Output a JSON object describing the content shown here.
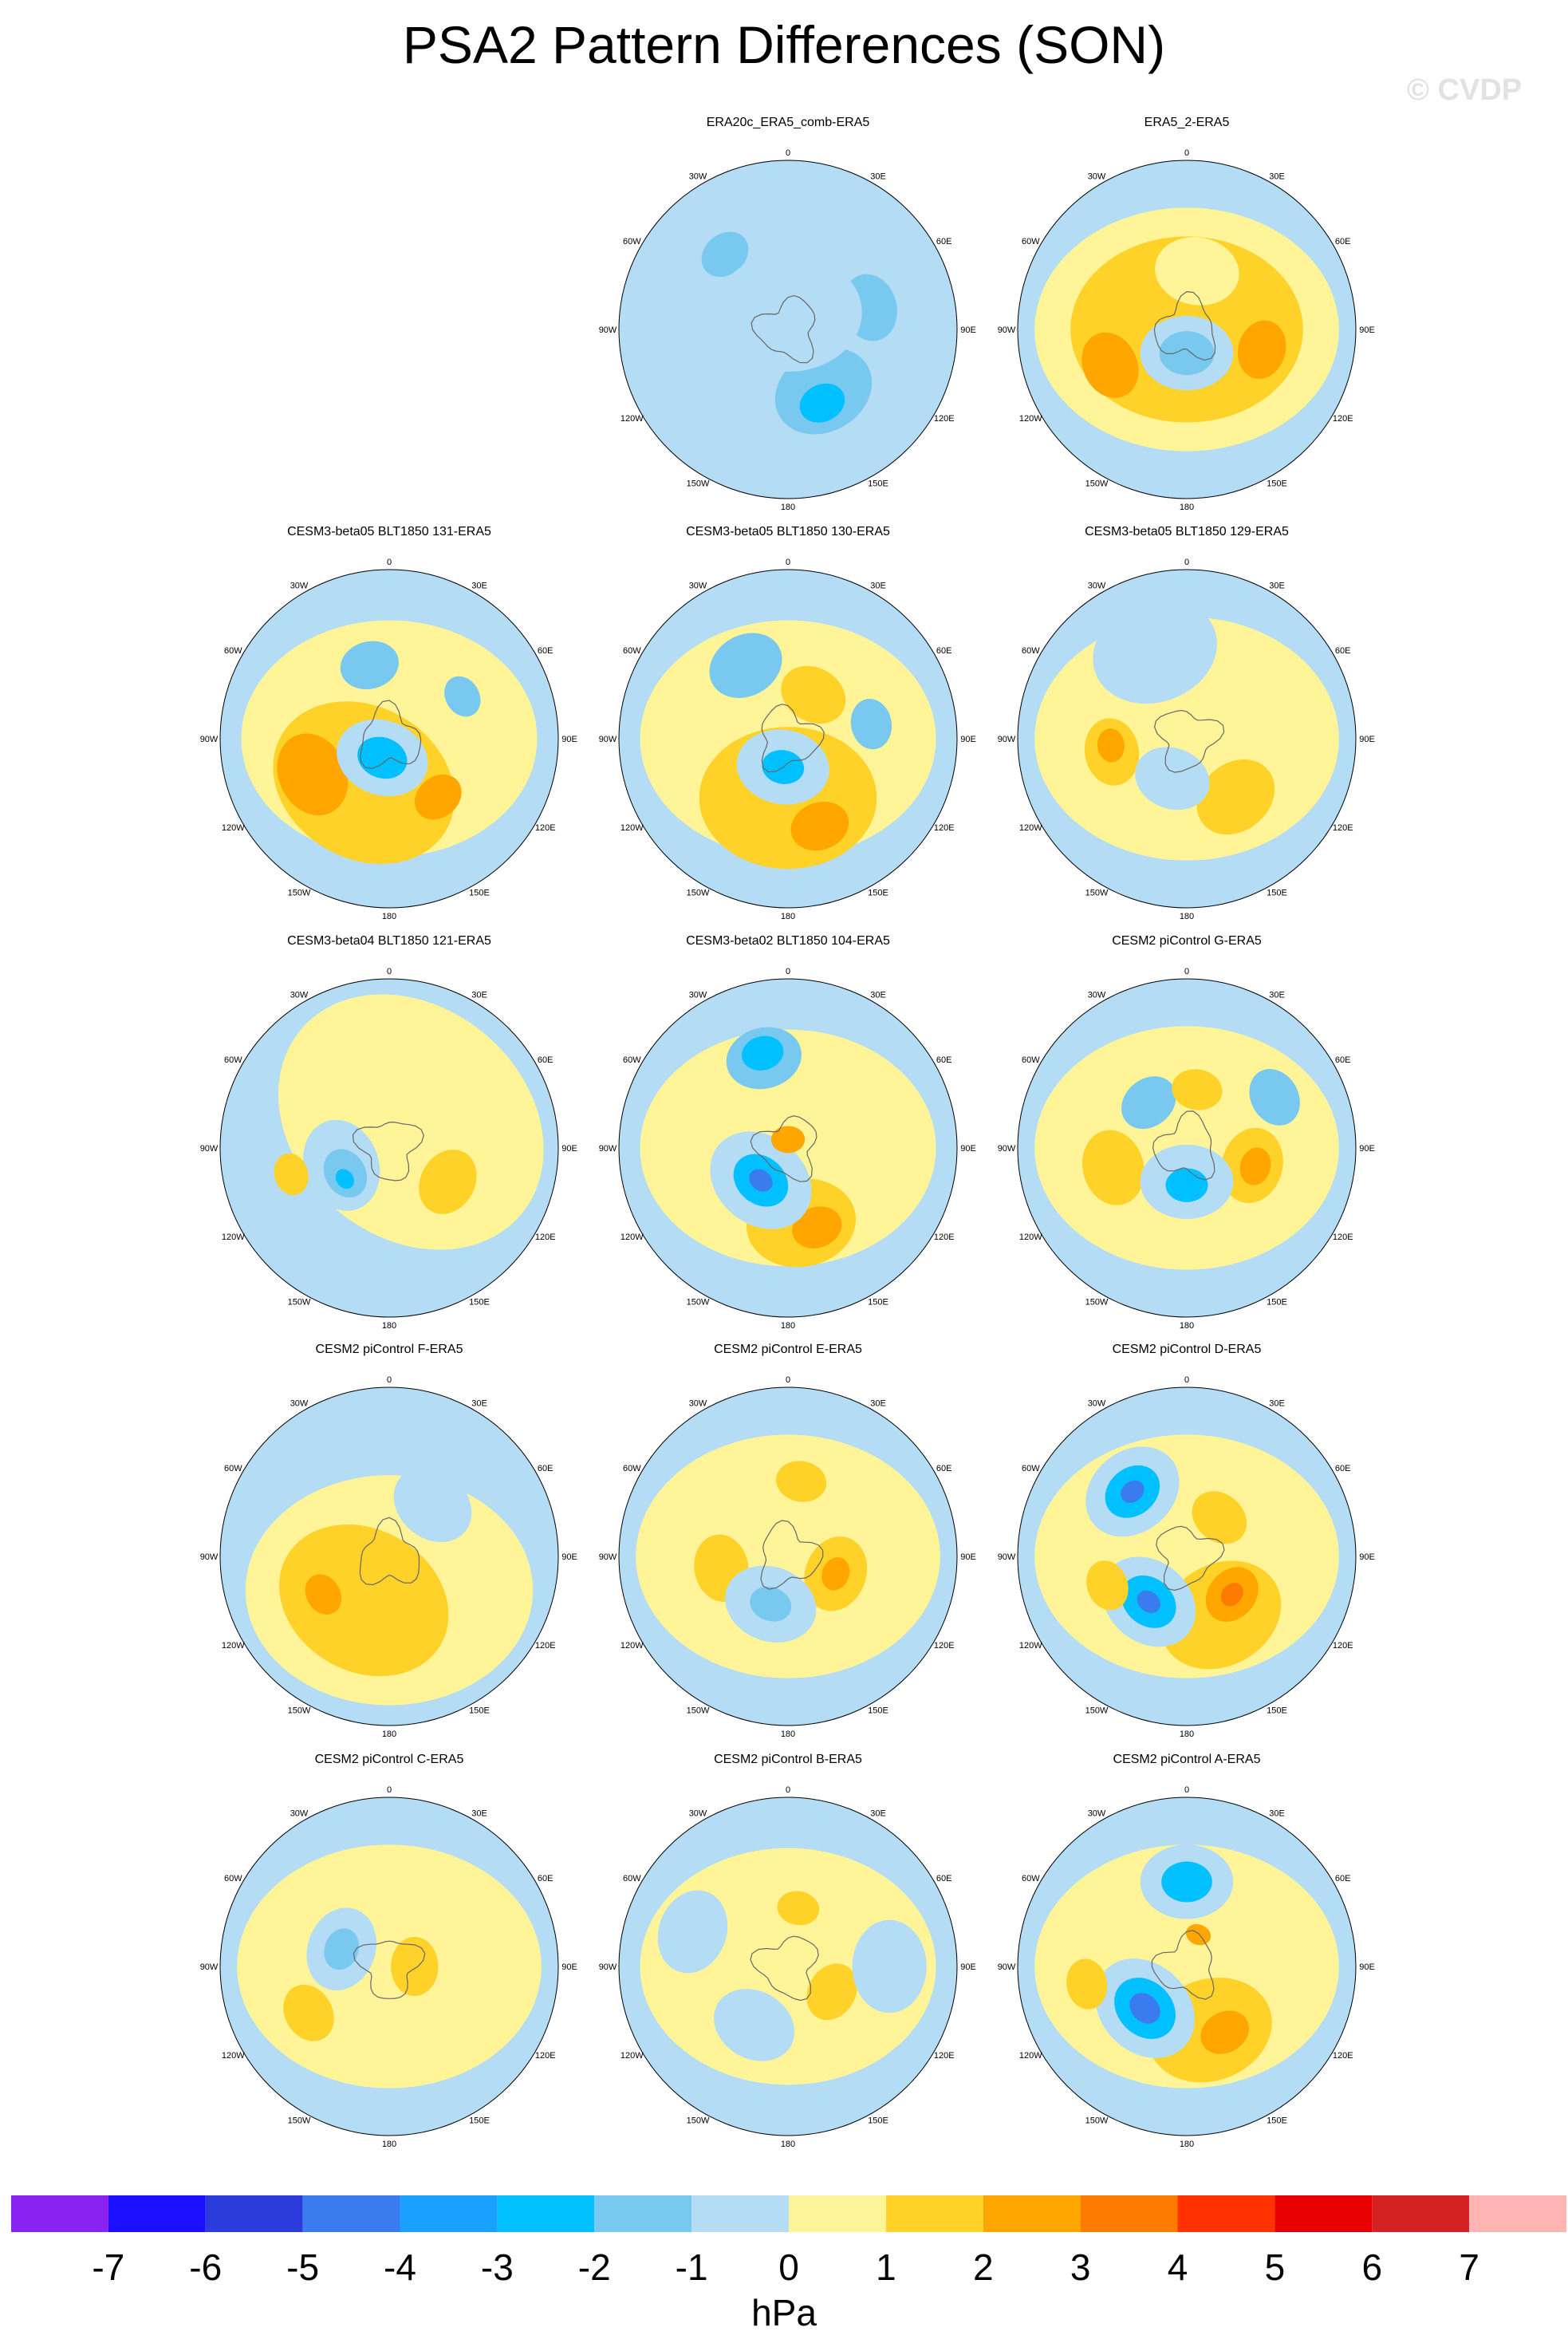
{
  "title": "PSA2 Pattern Differences (SON)",
  "credit": "© CVDP",
  "lon_labels": [
    "0",
    "30E",
    "60E",
    "90E",
    "120E",
    "150E",
    "180",
    "150W",
    "120W",
    "90W",
    "60W",
    "30W"
  ],
  "panels": [
    {
      "title": "ERA20c_ERA5_comb-ERA5",
      "blobs": [
        {
          "lon": 150,
          "r": 0.42,
          "level": -1,
          "s": 0.42
        },
        {
          "lon": 150,
          "r": 0.42,
          "level": -2,
          "s": 0.24
        },
        {
          "lon": 155,
          "r": 0.48,
          "level": -3,
          "s": 0.11
        },
        {
          "lon": 75,
          "r": 0.5,
          "level": -2,
          "s": 0.16
        },
        {
          "lon": 320,
          "r": 0.58,
          "level": -2,
          "s": 0.12
        },
        {
          "lon": 0,
          "r": 0.1,
          "level": -1,
          "s": 0.35
        }
      ]
    },
    {
      "title": "ERA5_2-ERA5",
      "blobs": [
        {
          "lon": 0,
          "r": 0.0,
          "level": 1,
          "s": 0.72
        },
        {
          "lon": 0,
          "r": 0.0,
          "level": 2,
          "s": 0.55
        },
        {
          "lon": 245,
          "r": 0.5,
          "level": 3,
          "s": 0.16
        },
        {
          "lon": 105,
          "r": 0.46,
          "level": 3,
          "s": 0.14
        },
        {
          "lon": 180,
          "r": 0.14,
          "level": -1,
          "s": 0.22
        },
        {
          "lon": 180,
          "r": 0.14,
          "level": -2,
          "s": 0.13
        },
        {
          "lon": 10,
          "r": 0.35,
          "level": 1,
          "s": 0.2
        }
      ]
    },
    {
      "title": "CESM3-beta05 BLT1850 131-ERA5",
      "blobs": [
        {
          "lon": 180,
          "r": 0.0,
          "level": 1,
          "s": 0.7
        },
        {
          "lon": 210,
          "r": 0.3,
          "level": 2,
          "s": 0.45
        },
        {
          "lon": 245,
          "r": 0.5,
          "level": 3,
          "s": 0.2
        },
        {
          "lon": 140,
          "r": 0.45,
          "level": 3,
          "s": 0.12
        },
        {
          "lon": 200,
          "r": 0.12,
          "level": -1,
          "s": 0.22
        },
        {
          "lon": 200,
          "r": 0.12,
          "level": -3,
          "s": 0.12
        },
        {
          "lon": 345,
          "r": 0.45,
          "level": -2,
          "s": 0.14
        },
        {
          "lon": 60,
          "r": 0.5,
          "level": -2,
          "s": 0.1
        }
      ]
    },
    {
      "title": "CESM3-beta05 BLT1850 130-ERA5",
      "blobs": [
        {
          "lon": 0,
          "r": 0.0,
          "level": 1,
          "s": 0.7
        },
        {
          "lon": 180,
          "r": 0.35,
          "level": 2,
          "s": 0.42
        },
        {
          "lon": 160,
          "r": 0.55,
          "level": 3,
          "s": 0.14
        },
        {
          "lon": 190,
          "r": 0.17,
          "level": -1,
          "s": 0.22
        },
        {
          "lon": 190,
          "r": 0.17,
          "level": -3,
          "s": 0.1
        },
        {
          "lon": 330,
          "r": 0.5,
          "level": -2,
          "s": 0.18
        },
        {
          "lon": 80,
          "r": 0.5,
          "level": -2,
          "s": 0.12
        },
        {
          "lon": 30,
          "r": 0.3,
          "level": 2,
          "s": 0.16
        }
      ]
    },
    {
      "title": "CESM3-beta05 BLT1850 129-ERA5",
      "blobs": [
        {
          "lon": 0,
          "r": 0.0,
          "level": 1,
          "s": 0.72
        },
        {
          "lon": 140,
          "r": 0.45,
          "level": 2,
          "s": 0.2
        },
        {
          "lon": 260,
          "r": 0.45,
          "level": 2,
          "s": 0.16
        },
        {
          "lon": 265,
          "r": 0.45,
          "level": 3,
          "s": 0.08
        },
        {
          "lon": 200,
          "r": 0.25,
          "level": -1,
          "s": 0.18
        },
        {
          "lon": 340,
          "r": 0.55,
          "level": -1,
          "s": 0.3
        }
      ]
    },
    {
      "title": "CESM3-beta04 BLT1850 121-ERA5",
      "blobs": [
        {
          "lon": 40,
          "r": 0.2,
          "level": 1,
          "s": 0.68
        },
        {
          "lon": 250,
          "r": 0.3,
          "level": -1,
          "s": 0.22
        },
        {
          "lon": 240,
          "r": 0.3,
          "level": -2,
          "s": 0.12
        },
        {
          "lon": 235,
          "r": 0.32,
          "level": -3,
          "s": 0.05
        },
        {
          "lon": 255,
          "r": 0.6,
          "level": 2,
          "s": 0.1
        },
        {
          "lon": 120,
          "r": 0.4,
          "level": 2,
          "s": 0.16
        }
      ]
    },
    {
      "title": "CESM3-beta02 BLT1850 104-ERA5",
      "blobs": [
        {
          "lon": 180,
          "r": 0.0,
          "level": 1,
          "s": 0.7
        },
        {
          "lon": 170,
          "r": 0.45,
          "level": 2,
          "s": 0.26
        },
        {
          "lon": 160,
          "r": 0.5,
          "level": 3,
          "s": 0.12
        },
        {
          "lon": 220,
          "r": 0.25,
          "level": -1,
          "s": 0.26
        },
        {
          "lon": 220,
          "r": 0.25,
          "level": -3,
          "s": 0.14
        },
        {
          "lon": 220,
          "r": 0.25,
          "level": -5,
          "s": 0.06
        },
        {
          "lon": 345,
          "r": 0.55,
          "level": -2,
          "s": 0.18
        },
        {
          "lon": 345,
          "r": 0.58,
          "level": -3,
          "s": 0.1
        },
        {
          "lon": 0,
          "r": 0.05,
          "level": 3,
          "s": 0.08
        }
      ]
    },
    {
      "title": "CESM2 piControl G-ERA5",
      "blobs": [
        {
          "lon": 0,
          "r": 0.0,
          "level": 1,
          "s": 0.72
        },
        {
          "lon": 255,
          "r": 0.45,
          "level": 2,
          "s": 0.18
        },
        {
          "lon": 105,
          "r": 0.4,
          "level": 2,
          "s": 0.18
        },
        {
          "lon": 105,
          "r": 0.42,
          "level": 3,
          "s": 0.09
        },
        {
          "lon": 180,
          "r": 0.2,
          "level": -1,
          "s": 0.22
        },
        {
          "lon": 180,
          "r": 0.22,
          "level": -3,
          "s": 0.1
        },
        {
          "lon": 60,
          "r": 0.6,
          "level": -2,
          "s": 0.14
        },
        {
          "lon": 320,
          "r": 0.35,
          "level": -2,
          "s": 0.14
        },
        {
          "lon": 10,
          "r": 0.35,
          "level": 2,
          "s": 0.12
        }
      ]
    },
    {
      "title": "CESM2 piControl F-ERA5",
      "blobs": [
        {
          "lon": 180,
          "r": 0.2,
          "level": 1,
          "s": 0.68
        },
        {
          "lon": 210,
          "r": 0.3,
          "level": 2,
          "s": 0.42
        },
        {
          "lon": 240,
          "r": 0.45,
          "level": 3,
          "s": 0.1
        },
        {
          "lon": 40,
          "r": 0.4,
          "level": -1,
          "s": 0.2
        }
      ]
    },
    {
      "title": "CESM2 piControl E-ERA5",
      "blobs": [
        {
          "lon": 0,
          "r": 0.0,
          "level": 1,
          "s": 0.72
        },
        {
          "lon": 110,
          "r": 0.3,
          "level": 2,
          "s": 0.18
        },
        {
          "lon": 110,
          "r": 0.3,
          "level": 3,
          "s": 0.08
        },
        {
          "lon": 260,
          "r": 0.4,
          "level": 2,
          "s": 0.16
        },
        {
          "lon": 10,
          "r": 0.45,
          "level": 2,
          "s": 0.12
        },
        {
          "lon": 200,
          "r": 0.3,
          "level": -1,
          "s": 0.22
        },
        {
          "lon": 200,
          "r": 0.3,
          "level": -2,
          "s": 0.1
        }
      ]
    },
    {
      "title": "CESM2 piControl D-ERA5",
      "blobs": [
        {
          "lon": 0,
          "r": 0.0,
          "level": 1,
          "s": 0.72
        },
        {
          "lon": 150,
          "r": 0.4,
          "level": 2,
          "s": 0.3
        },
        {
          "lon": 130,
          "r": 0.35,
          "level": 3,
          "s": 0.14
        },
        {
          "lon": 130,
          "r": 0.35,
          "level": 4,
          "s": 0.06
        },
        {
          "lon": 220,
          "r": 0.35,
          "level": -1,
          "s": 0.24
        },
        {
          "lon": 220,
          "r": 0.35,
          "level": -3,
          "s": 0.14
        },
        {
          "lon": 220,
          "r": 0.35,
          "level": -5,
          "s": 0.06
        },
        {
          "lon": 320,
          "r": 0.5,
          "level": -1,
          "s": 0.24
        },
        {
          "lon": 320,
          "r": 0.5,
          "level": -3,
          "s": 0.14
        },
        {
          "lon": 320,
          "r": 0.5,
          "level": -5,
          "s": 0.06
        },
        {
          "lon": 250,
          "r": 0.5,
          "level": 2,
          "s": 0.12
        },
        {
          "lon": 40,
          "r": 0.3,
          "level": 2,
          "s": 0.14
        }
      ]
    },
    {
      "title": "CESM2 piControl C-ERA5",
      "blobs": [
        {
          "lon": 0,
          "r": 0.0,
          "level": 1,
          "s": 0.72
        },
        {
          "lon": 290,
          "r": 0.3,
          "level": -1,
          "s": 0.2
        },
        {
          "lon": 290,
          "r": 0.3,
          "level": -2,
          "s": 0.1
        },
        {
          "lon": 240,
          "r": 0.55,
          "level": 2,
          "s": 0.14
        },
        {
          "lon": 90,
          "r": 0.15,
          "level": 2,
          "s": 0.14
        }
      ]
    },
    {
      "title": "CESM2 piControl B-ERA5",
      "blobs": [
        {
          "lon": 0,
          "r": 0.0,
          "level": 1,
          "s": 0.7
        },
        {
          "lon": 120,
          "r": 0.3,
          "level": 2,
          "s": 0.14
        },
        {
          "lon": 10,
          "r": 0.35,
          "level": 2,
          "s": 0.1
        },
        {
          "lon": 210,
          "r": 0.4,
          "level": -1,
          "s": 0.2
        },
        {
          "lon": 90,
          "r": 0.6,
          "level": -1,
          "s": 0.22
        },
        {
          "lon": 290,
          "r": 0.6,
          "level": -1,
          "s": 0.2
        }
      ]
    },
    {
      "title": "CESM2 piControl A-ERA5",
      "blobs": [
        {
          "lon": 0,
          "r": 0.0,
          "level": 1,
          "s": 0.72
        },
        {
          "lon": 160,
          "r": 0.4,
          "level": 2,
          "s": 0.3
        },
        {
          "lon": 150,
          "r": 0.45,
          "level": 3,
          "s": 0.12
        },
        {
          "lon": 225,
          "r": 0.35,
          "level": -1,
          "s": 0.26
        },
        {
          "lon": 225,
          "r": 0.35,
          "level": -3,
          "s": 0.16
        },
        {
          "lon": 225,
          "r": 0.35,
          "level": -5,
          "s": 0.08
        },
        {
          "lon": 0,
          "r": 0.5,
          "level": -1,
          "s": 0.22
        },
        {
          "lon": 0,
          "r": 0.5,
          "level": -3,
          "s": 0.12
        },
        {
          "lon": 260,
          "r": 0.6,
          "level": 2,
          "s": 0.12
        },
        {
          "lon": 20,
          "r": 0.2,
          "level": 3,
          "s": 0.06
        }
      ]
    }
  ],
  "colorbar": {
    "colors": [
      "#8a22f0",
      "#1a10ff",
      "#2c3cdc",
      "#3a7cf0",
      "#1aa0ff",
      "#00c0ff",
      "#78c8f0",
      "#b4dcf4",
      "#fff598",
      "#ffd22a",
      "#ffa600",
      "#ff7b00",
      "#ff3200",
      "#e80000",
      "#d42222",
      "#ffb4b4"
    ],
    "ticks": [
      "-7",
      "-6",
      "-5",
      "-4",
      "-3",
      "-2",
      "-1",
      "0",
      "1",
      "2",
      "3",
      "4",
      "5",
      "6",
      "7"
    ],
    "units": "hPa"
  }
}
